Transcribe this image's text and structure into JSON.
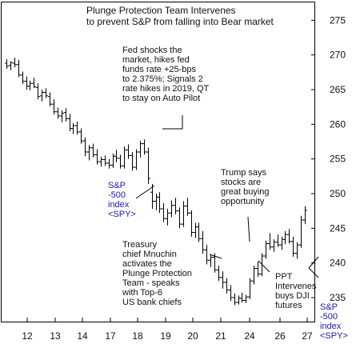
{
  "chart_data": {
    "type": "ohlc",
    "title": "Plunge Protection Team Intervenes\nto prevent S&P from falling into Bear market",
    "x_tick_labels": [
      "12",
      "13",
      "14",
      "17",
      "18",
      "19",
      "20",
      "21",
      "24",
      "26",
      "27"
    ],
    "y_tick_labels": [
      275,
      270,
      265,
      260,
      255,
      250,
      245,
      240,
      235
    ],
    "ylim": [
      232,
      277
    ],
    "y_axis_side": "right",
    "series_name": "S&P -500 index <SPY>",
    "bar_color": "#000000",
    "bars": [
      {
        "o": 268.8,
        "h": 269.4,
        "l": 268.0,
        "c": 268.4
      },
      {
        "o": 268.5,
        "h": 269.1,
        "l": 267.8,
        "c": 268.9
      },
      {
        "o": 268.8,
        "h": 269.6,
        "l": 268.2,
        "c": 268.6
      },
      {
        "o": 268.6,
        "h": 269.3,
        "l": 266.8,
        "c": 267.1
      },
      {
        "o": 267.1,
        "h": 267.6,
        "l": 265.8,
        "c": 266.2
      },
      {
        "o": 266.2,
        "h": 266.9,
        "l": 265.0,
        "c": 265.5
      },
      {
        "o": 265.5,
        "h": 266.3,
        "l": 264.9,
        "c": 265.9
      },
      {
        "o": 265.9,
        "h": 266.7,
        "l": 265.2,
        "c": 265.4
      },
      {
        "o": 265.3,
        "h": 265.9,
        "l": 263.6,
        "c": 264.0
      },
      {
        "o": 264.1,
        "h": 265.0,
        "l": 263.3,
        "c": 264.6
      },
      {
        "o": 264.6,
        "h": 265.2,
        "l": 263.8,
        "c": 264.1
      },
      {
        "o": 264.0,
        "h": 264.6,
        "l": 262.6,
        "c": 262.9
      },
      {
        "o": 262.9,
        "h": 263.6,
        "l": 261.4,
        "c": 261.8
      },
      {
        "o": 261.8,
        "h": 262.4,
        "l": 260.8,
        "c": 261.2
      },
      {
        "o": 261.2,
        "h": 262.0,
        "l": 260.3,
        "c": 261.6
      },
      {
        "o": 261.7,
        "h": 262.3,
        "l": 260.4,
        "c": 260.8
      },
      {
        "o": 260.8,
        "h": 261.5,
        "l": 259.0,
        "c": 259.4
      },
      {
        "o": 259.4,
        "h": 260.2,
        "l": 258.6,
        "c": 259.8
      },
      {
        "o": 259.8,
        "h": 260.4,
        "l": 258.5,
        "c": 258.9
      },
      {
        "o": 258.9,
        "h": 259.4,
        "l": 257.2,
        "c": 257.6
      },
      {
        "o": 257.6,
        "h": 258.1,
        "l": 255.4,
        "c": 256.0
      },
      {
        "o": 256.0,
        "h": 257.0,
        "l": 254.8,
        "c": 256.6
      },
      {
        "o": 256.6,
        "h": 257.2,
        "l": 255.2,
        "c": 255.6
      },
      {
        "o": 255.6,
        "h": 256.4,
        "l": 254.2,
        "c": 254.6
      },
      {
        "o": 254.6,
        "h": 255.3,
        "l": 253.9,
        "c": 254.9
      },
      {
        "o": 254.9,
        "h": 255.5,
        "l": 254.0,
        "c": 254.4
      },
      {
        "o": 254.4,
        "h": 255.0,
        "l": 253.6,
        "c": 254.1
      },
      {
        "o": 254.1,
        "h": 255.8,
        "l": 253.7,
        "c": 255.4
      },
      {
        "o": 255.4,
        "h": 256.3,
        "l": 254.5,
        "c": 255.1
      },
      {
        "o": 255.1,
        "h": 255.6,
        "l": 253.6,
        "c": 254.0
      },
      {
        "o": 254.0,
        "h": 256.8,
        "l": 253.6,
        "c": 256.3
      },
      {
        "o": 256.3,
        "h": 257.1,
        "l": 255.0,
        "c": 255.5
      },
      {
        "o": 255.5,
        "h": 256.0,
        "l": 253.3,
        "c": 253.8
      },
      {
        "o": 253.8,
        "h": 256.4,
        "l": 253.4,
        "c": 256.0
      },
      {
        "o": 256.0,
        "h": 257.6,
        "l": 255.2,
        "c": 257.2
      },
      {
        "o": 257.2,
        "h": 257.8,
        "l": 255.6,
        "c": 256.0
      },
      {
        "o": 256.0,
        "h": 256.6,
        "l": 251.4,
        "c": 252.2
      },
      {
        "o": 250.2,
        "h": 251.4,
        "l": 247.8,
        "c": 248.9
      },
      {
        "o": 248.9,
        "h": 250.0,
        "l": 247.6,
        "c": 249.5
      },
      {
        "o": 249.5,
        "h": 250.2,
        "l": 247.2,
        "c": 247.8
      },
      {
        "o": 247.8,
        "h": 248.6,
        "l": 245.9,
        "c": 246.4
      },
      {
        "o": 246.4,
        "h": 247.8,
        "l": 245.4,
        "c": 247.2
      },
      {
        "o": 247.2,
        "h": 249.0,
        "l": 246.6,
        "c": 248.3
      },
      {
        "o": 248.3,
        "h": 249.4,
        "l": 247.0,
        "c": 247.5
      },
      {
        "o": 247.5,
        "h": 248.0,
        "l": 245.0,
        "c": 245.6
      },
      {
        "o": 245.6,
        "h": 248.9,
        "l": 245.2,
        "c": 248.2
      },
      {
        "o": 248.2,
        "h": 249.4,
        "l": 246.8,
        "c": 247.2
      },
      {
        "o": 247.2,
        "h": 247.6,
        "l": 243.8,
        "c": 244.4
      },
      {
        "o": 244.4,
        "h": 245.8,
        "l": 243.6,
        "c": 245.2
      },
      {
        "o": 245.2,
        "h": 245.8,
        "l": 243.0,
        "c": 243.5
      },
      {
        "o": 243.5,
        "h": 244.6,
        "l": 241.3,
        "c": 241.9
      },
      {
        "o": 241.9,
        "h": 242.6,
        "l": 239.8,
        "c": 240.4
      },
      {
        "o": 240.4,
        "h": 241.2,
        "l": 239.4,
        "c": 240.8
      },
      {
        "o": 240.8,
        "h": 241.4,
        "l": 238.6,
        "c": 239.0
      },
      {
        "o": 239.0,
        "h": 239.6,
        "l": 237.4,
        "c": 237.9
      },
      {
        "o": 237.9,
        "h": 238.8,
        "l": 236.3,
        "c": 237.2
      },
      {
        "o": 237.2,
        "h": 237.8,
        "l": 235.6,
        "c": 236.1
      },
      {
        "o": 236.1,
        "h": 236.8,
        "l": 234.5,
        "c": 235.0
      },
      {
        "o": 235.0,
        "h": 235.6,
        "l": 233.9,
        "c": 234.3
      },
      {
        "o": 234.3,
        "h": 235.3,
        "l": 234.0,
        "c": 234.9
      },
      {
        "o": 234.9,
        "h": 235.7,
        "l": 234.3,
        "c": 234.6
      },
      {
        "o": 234.6,
        "h": 235.4,
        "l": 234.2,
        "c": 235.1
      },
      {
        "o": 235.1,
        "h": 237.8,
        "l": 234.8,
        "c": 237.4
      },
      {
        "o": 237.4,
        "h": 239.6,
        "l": 236.9,
        "c": 239.2
      },
      {
        "o": 239.2,
        "h": 240.2,
        "l": 238.0,
        "c": 238.4
      },
      {
        "o": 238.4,
        "h": 241.4,
        "l": 238.1,
        "c": 241.0
      },
      {
        "o": 241.0,
        "h": 243.2,
        "l": 240.6,
        "c": 242.8
      },
      {
        "o": 242.8,
        "h": 244.3,
        "l": 241.9,
        "c": 242.3
      },
      {
        "o": 242.3,
        "h": 243.4,
        "l": 241.6,
        "c": 243.0
      },
      {
        "o": 243.0,
        "h": 244.1,
        "l": 242.3,
        "c": 242.6
      },
      {
        "o": 242.6,
        "h": 243.8,
        "l": 241.9,
        "c": 243.4
      },
      {
        "o": 243.4,
        "h": 244.6,
        "l": 242.7,
        "c": 244.1
      },
      {
        "o": 244.1,
        "h": 244.9,
        "l": 242.8,
        "c": 243.1
      },
      {
        "o": 243.1,
        "h": 243.8,
        "l": 240.9,
        "c": 241.4
      },
      {
        "o": 241.4,
        "h": 243.0,
        "l": 240.6,
        "c": 242.6
      },
      {
        "o": 242.6,
        "h": 246.8,
        "l": 242.2,
        "c": 246.2
      },
      {
        "o": 246.2,
        "h": 248.2,
        "l": 245.6,
        "c": 247.6
      }
    ],
    "annotations": [
      "Fed shocks the\nmarket, hikes fed\nfunds rate +25-bps\nto 2.375%; Signals 2\nrate hikes in 2019, QT\nto stay on Auto Pilot",
      "S&P\n-500\nindex\n<SPY>",
      "Trump says\nstocks are\ngreat buying\nopportunity",
      "Treasury\nchief Mnuchin\nactivates the\nPlunge Protection\nTeam - speaks\nwith Top-6\nUS bank chiefs",
      "PPT\nIntervenes\nbuys DJI\nfutures",
      "S&P\n-500\nindex\n<SPY>"
    ]
  }
}
